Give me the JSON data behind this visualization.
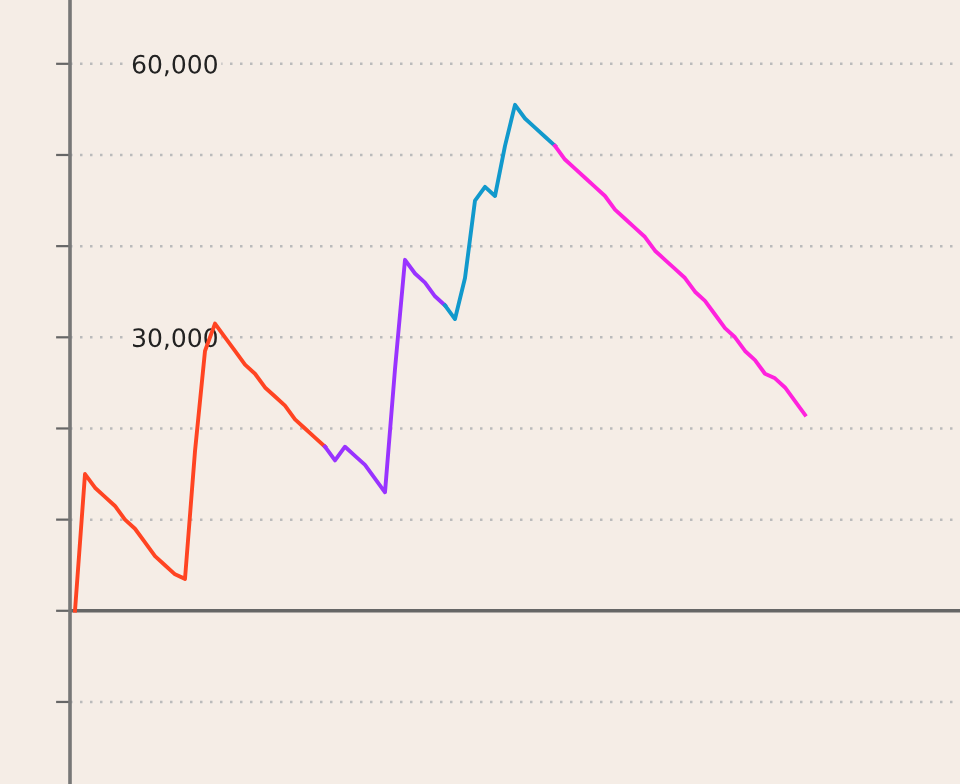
{
  "chart_data": {
    "type": "line",
    "categories": [
      null,
      null,
      null,
      null,
      null,
      null,
      null,
      null,
      null,
      null,
      null,
      null,
      null,
      null,
      null,
      null,
      null,
      null,
      null,
      null,
      null,
      null,
      null,
      null,
      null,
      null,
      null,
      null,
      null,
      null,
      null,
      null,
      null,
      null,
      null,
      null,
      null,
      null,
      null,
      null,
      null,
      null,
      null,
      null,
      null,
      null,
      null,
      null,
      null,
      null,
      null,
      null,
      null,
      null,
      null,
      null,
      null,
      null,
      null,
      null,
      null,
      null,
      null,
      null,
      null,
      null,
      null,
      null,
      null,
      null,
      null,
      null,
      null,
      null,
      null,
      null,
      null,
      null,
      null,
      null,
      null,
      null,
      null,
      null,
      null,
      null,
      null,
      null,
      null
    ],
    "series": [
      {
        "color": "#ff4422",
        "values": [
          0,
          15000,
          13500,
          12500,
          11500,
          10000,
          9000,
          7500,
          6000,
          5000,
          4000,
          3500,
          17500,
          28500,
          31500,
          30000,
          28500,
          27000,
          26000,
          24500,
          23500,
          22500,
          21000,
          20000,
          19000,
          18000,
          null,
          null,
          null,
          null,
          null,
          null,
          null,
          null,
          null,
          null,
          null,
          null,
          null,
          null,
          null,
          null,
          null,
          null,
          null,
          null,
          null,
          null,
          null,
          null,
          null,
          null,
          null,
          null,
          null,
          null,
          null,
          null,
          null,
          null,
          null,
          null,
          null,
          null,
          null,
          null,
          null,
          null,
          null,
          null,
          null,
          null,
          null,
          null,
          null,
          null,
          null,
          null,
          null,
          null,
          null,
          null,
          null,
          null,
          null,
          null,
          null,
          null,
          null
        ]
      },
      {
        "color": "#9933ff",
        "values": [
          null,
          null,
          null,
          null,
          null,
          null,
          null,
          null,
          null,
          null,
          null,
          null,
          null,
          null,
          null,
          null,
          null,
          null,
          null,
          null,
          null,
          null,
          null,
          null,
          null,
          18000,
          16500,
          18000,
          17000,
          16000,
          14500,
          13000,
          26500,
          38500,
          37000,
          36000,
          34500,
          33500,
          null,
          null,
          null,
          null,
          null,
          null,
          null,
          null,
          null,
          null,
          null,
          null,
          null,
          null,
          null,
          null,
          null,
          null,
          null,
          null,
          null,
          null,
          null,
          null,
          null,
          null,
          null,
          null,
          null,
          null,
          null,
          null,
          null,
          null,
          null,
          null,
          null,
          null,
          null,
          null,
          null,
          null,
          null,
          null,
          null,
          null,
          null,
          null,
          null,
          null,
          null
        ]
      },
      {
        "color": "#1199cc",
        "values": [
          null,
          null,
          null,
          null,
          null,
          null,
          null,
          null,
          null,
          null,
          null,
          null,
          null,
          null,
          null,
          null,
          null,
          null,
          null,
          null,
          null,
          null,
          null,
          null,
          null,
          null,
          null,
          null,
          null,
          null,
          null,
          null,
          null,
          null,
          null,
          null,
          null,
          33500,
          32000,
          36500,
          45000,
          46500,
          45500,
          51000,
          55500,
          54000,
          53000,
          52000,
          51000,
          null,
          null,
          null,
          null,
          null,
          null,
          null,
          null,
          null,
          null,
          null,
          null,
          null,
          null,
          null,
          null,
          null,
          null,
          null,
          null,
          null,
          null,
          null,
          null,
          null,
          null,
          null,
          null,
          null,
          null,
          null,
          null,
          null,
          null,
          null,
          null,
          null,
          null,
          null,
          null
        ]
      },
      {
        "color": "#ff22dd",
        "values": [
          null,
          null,
          null,
          null,
          null,
          null,
          null,
          null,
          null,
          null,
          null,
          null,
          null,
          null,
          null,
          null,
          null,
          null,
          null,
          null,
          null,
          null,
          null,
          null,
          null,
          null,
          null,
          null,
          null,
          null,
          null,
          null,
          null,
          null,
          null,
          null,
          null,
          null,
          null,
          null,
          null,
          null,
          null,
          null,
          null,
          null,
          null,
          null,
          51000,
          49500,
          48500,
          47500,
          46500,
          45500,
          44000,
          43000,
          42000,
          41000,
          39500,
          38500,
          37500,
          36500,
          35000,
          34000,
          32500,
          31000,
          30000,
          28500,
          27500,
          26000,
          25500,
          24500,
          23000,
          21500,
          null,
          null,
          null,
          null,
          null,
          null,
          null,
          null,
          null,
          null,
          null,
          null,
          null,
          null,
          null
        ]
      }
    ],
    "ylim": [
      -19000,
      67000
    ],
    "yticks": [
      {
        "value": -10000,
        "label": null
      },
      {
        "value": 0,
        "label": null
      },
      {
        "value": 10000,
        "label": null
      },
      {
        "value": 20000,
        "label": null
      },
      {
        "value": 30000,
        "label": "30,000"
      },
      {
        "value": 40000,
        "label": null
      },
      {
        "value": 50000,
        "label": null
      },
      {
        "value": 60000,
        "label": "60,000"
      }
    ],
    "ref_lines": [
      {
        "axis": "y",
        "value": 0,
        "color": "#666666",
        "line_style": "solid"
      }
    ],
    "grid": "y",
    "tick_labels": "y",
    "marker": "none",
    "line_style": "solid",
    "legend": false
  }
}
